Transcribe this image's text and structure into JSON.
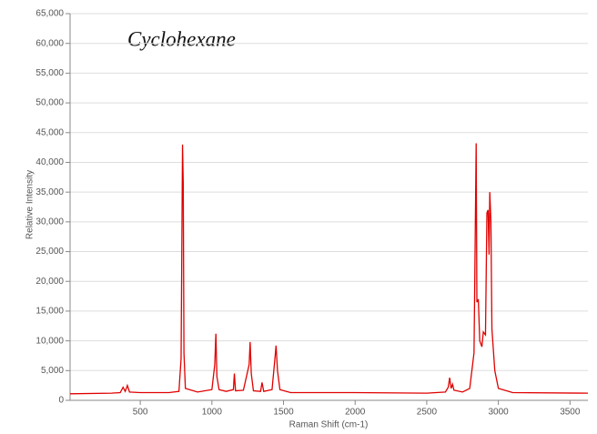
{
  "chart_data": {
    "type": "line",
    "title": "Cyclohexane",
    "x_label": "Raman Shift (cm-1)",
    "y_label": "Relative Intensity",
    "color": "#e00000",
    "grid": true,
    "xlim": [
      10,
      3625
    ],
    "ylim": [
      0,
      65000
    ],
    "xticks": [
      500,
      1000,
      1500,
      2000,
      2500,
      3000,
      3500
    ],
    "yticks": [
      0,
      {
        "value": 5000,
        "label": "5,000"
      },
      {
        "value": 10000,
        "label": "10,000"
      },
      {
        "value": 15000,
        "label": "15,000"
      },
      {
        "value": 20000,
        "label": "20,000"
      },
      {
        "value": 25000,
        "label": "25,000"
      },
      {
        "value": 30000,
        "label": "30,000"
      },
      {
        "value": 35000,
        "label": "35,000"
      },
      {
        "value": 40000,
        "label": "40,000"
      },
      {
        "value": 45000,
        "label": "45,000"
      },
      {
        "value": 50000,
        "label": "50,000"
      },
      {
        "value": 55000,
        "label": "55,000"
      },
      {
        "value": 60000,
        "label": "60,000"
      },
      {
        "value": 65000,
        "label": "65,000"
      }
    ],
    "x": [
      10,
      300,
      360,
      380,
      395,
      410,
      425,
      500,
      700,
      770,
      785,
      795,
      800,
      805,
      815,
      900,
      1000,
      1020,
      1028,
      1035,
      1050,
      1100,
      1150,
      1157,
      1165,
      1220,
      1260,
      1267,
      1275,
      1290,
      1340,
      1350,
      1362,
      1420,
      1440,
      1448,
      1458,
      1475,
      1550,
      2000,
      2500,
      2630,
      2650,
      2660,
      2670,
      2680,
      2690,
      2750,
      2800,
      2830,
      2845,
      2850,
      2860,
      2870,
      2885,
      2895,
      2910,
      2920,
      2928,
      2935,
      2940,
      2948,
      2955,
      2975,
      3000,
      3100,
      3625
    ],
    "values": [
      1100,
      1200,
      1300,
      2200,
      1500,
      2500,
      1400,
      1300,
      1300,
      1500,
      7000,
      43000,
      36500,
      8000,
      2000,
      1400,
      1800,
      6000,
      11200,
      4000,
      1800,
      1500,
      1800,
      4500,
      1600,
      1700,
      6000,
      9800,
      4500,
      1600,
      1500,
      3000,
      1500,
      1800,
      7000,
      9200,
      5000,
      1800,
      1300,
      1300,
      1200,
      1400,
      2200,
      3800,
      2000,
      2700,
      1700,
      1400,
      2000,
      8000,
      43200,
      16500,
      17000,
      10000,
      9000,
      11500,
      11000,
      31500,
      32000,
      24500,
      35000,
      30000,
      12000,
      5000,
      2000,
      1300,
      1200
    ]
  }
}
